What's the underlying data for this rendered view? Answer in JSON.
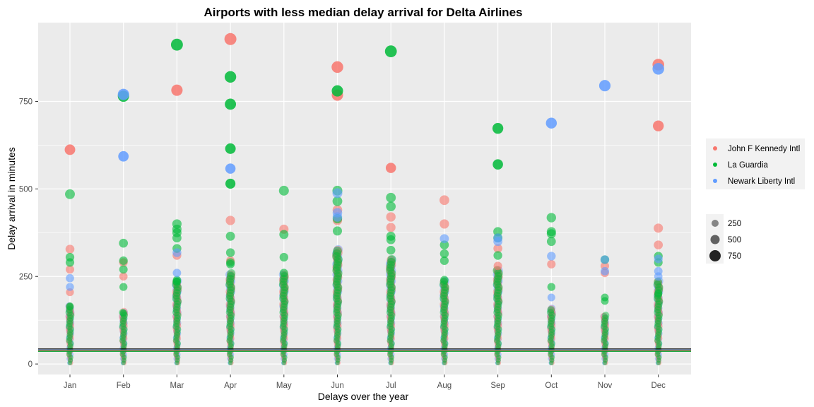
{
  "chart_data": {
    "type": "scatter",
    "title": "Airports with less median delay arrival for Delta Airlines",
    "xlabel": "Delays over the year",
    "ylabel": "Delay arrival in minutes",
    "categories": [
      "Jan",
      "Feb",
      "Mar",
      "Apr",
      "May",
      "Jun",
      "Jul",
      "Aug",
      "Sep",
      "Oct",
      "Nov",
      "Dec"
    ],
    "ylim": [
      -30,
      975
    ],
    "yticks": [
      0,
      250,
      500,
      750
    ],
    "grid": true,
    "legend_position": "right",
    "colors": {
      "John F Kennedy Intl": "#F8766D",
      "La Guardia": "#00BA38",
      "Newark Liberty Intl": "#619CFF",
      "background": "#EBEBEB"
    },
    "legend": {
      "series": [
        "John F Kennedy Intl",
        "La Guardia",
        "Newark Liberty Intl"
      ],
      "size_values": [
        250,
        500,
        750
      ],
      "size_labels": [
        "250",
        "500",
        "750"
      ]
    },
    "reference_lines": [
      {
        "y": 43,
        "color": "#000000"
      },
      {
        "y": 40,
        "color": "#2F6FE0"
      },
      {
        "y": 38,
        "color": "#C97A00"
      },
      {
        "y": 36,
        "color": "#00A030"
      }
    ],
    "series": [
      {
        "name": "John F Kennedy Intl",
        "points": [
          [
            "Jan",
            612
          ],
          [
            "Jan",
            328
          ],
          [
            "Jan",
            270
          ],
          [
            "Jan",
            205
          ],
          [
            "Feb",
            290
          ],
          [
            "Feb",
            250
          ],
          [
            "Mar",
            782
          ],
          [
            "Mar",
            310
          ],
          [
            "Apr",
            928
          ],
          [
            "Apr",
            410
          ],
          [
            "Apr",
            295
          ],
          [
            "May",
            385
          ],
          [
            "Jun",
            848
          ],
          [
            "Jun",
            768
          ],
          [
            "Jun",
            440
          ],
          [
            "Jun",
            410
          ],
          [
            "Jul",
            560
          ],
          [
            "Jul",
            420
          ],
          [
            "Jul",
            390
          ],
          [
            "Aug",
            468
          ],
          [
            "Aug",
            400
          ],
          [
            "Sep",
            330
          ],
          [
            "Sep",
            280
          ],
          [
            "Oct",
            285
          ],
          [
            "Nov",
            280
          ],
          [
            "Nov",
            260
          ],
          [
            "Dec",
            855
          ],
          [
            "Dec",
            680
          ],
          [
            "Dec",
            388
          ],
          [
            "Dec",
            340
          ]
        ]
      },
      {
        "name": "La Guardia",
        "points": [
          [
            "Jan",
            485
          ],
          [
            "Jan",
            305
          ],
          [
            "Jan",
            290
          ],
          [
            "Jan",
            165
          ],
          [
            "Feb",
            765
          ],
          [
            "Feb",
            345
          ],
          [
            "Feb",
            295
          ],
          [
            "Feb",
            270
          ],
          [
            "Feb",
            220
          ],
          [
            "Feb",
            145
          ],
          [
            "Mar",
            912
          ],
          [
            "Mar",
            400
          ],
          [
            "Mar",
            385
          ],
          [
            "Mar",
            375
          ],
          [
            "Mar",
            360
          ],
          [
            "Mar",
            330
          ],
          [
            "Mar",
            240
          ],
          [
            "Mar",
            235
          ],
          [
            "Apr",
            820
          ],
          [
            "Apr",
            742
          ],
          [
            "Apr",
            615
          ],
          [
            "Apr",
            515
          ],
          [
            "Apr",
            365
          ],
          [
            "Apr",
            318
          ],
          [
            "Apr",
            290
          ],
          [
            "Apr",
            285
          ],
          [
            "May",
            495
          ],
          [
            "May",
            370
          ],
          [
            "May",
            305
          ],
          [
            "May",
            260
          ],
          [
            "Jun",
            780
          ],
          [
            "Jun",
            495
          ],
          [
            "Jun",
            465
          ],
          [
            "Jun",
            415
          ],
          [
            "Jun",
            380
          ],
          [
            "Jul",
            893
          ],
          [
            "Jul",
            475
          ],
          [
            "Jul",
            450
          ],
          [
            "Jul",
            365
          ],
          [
            "Jul",
            355
          ],
          [
            "Jul",
            325
          ],
          [
            "Aug",
            340
          ],
          [
            "Aug",
            315
          ],
          [
            "Aug",
            295
          ],
          [
            "Aug",
            240
          ],
          [
            "Sep",
            673
          ],
          [
            "Sep",
            570
          ],
          [
            "Sep",
            378
          ],
          [
            "Sep",
            360
          ],
          [
            "Sep",
            310
          ],
          [
            "Oct",
            418
          ],
          [
            "Oct",
            378
          ],
          [
            "Oct",
            372
          ],
          [
            "Oct",
            350
          ],
          [
            "Oct",
            220
          ],
          [
            "Nov",
            298
          ],
          [
            "Nov",
            190
          ],
          [
            "Nov",
            180
          ],
          [
            "Dec",
            308
          ],
          [
            "Dec",
            290
          ],
          [
            "Dec",
            200
          ]
        ]
      },
      {
        "name": "Newark Liberty Intl",
        "points": [
          [
            "Jan",
            245
          ],
          [
            "Jan",
            220
          ],
          [
            "Feb",
            770
          ],
          [
            "Feb",
            593
          ],
          [
            "Mar",
            318
          ],
          [
            "Mar",
            260
          ],
          [
            "Apr",
            558
          ],
          [
            "Jun",
            488
          ],
          [
            "Jun",
            432
          ],
          [
            "Jun",
            420
          ],
          [
            "Aug",
            358
          ],
          [
            "Sep",
            360
          ],
          [
            "Sep",
            350
          ],
          [
            "Oct",
            688
          ],
          [
            "Oct",
            308
          ],
          [
            "Oct",
            190
          ],
          [
            "Nov",
            795
          ],
          [
            "Nov",
            298
          ],
          [
            "Nov",
            265
          ],
          [
            "Dec",
            843
          ],
          [
            "Dec",
            300
          ],
          [
            "Dec",
            265
          ],
          [
            "Dec",
            250
          ]
        ]
      }
    ],
    "dense_band": [
      {
        "month": "Jan",
        "top": 165
      },
      {
        "month": "Feb",
        "top": 150
      },
      {
        "month": "Mar",
        "top": 240
      },
      {
        "month": "Apr",
        "top": 260
      },
      {
        "month": "May",
        "top": 255
      },
      {
        "month": "Jun",
        "top": 330
      },
      {
        "month": "Jul",
        "top": 300
      },
      {
        "month": "Aug",
        "top": 240
      },
      {
        "month": "Sep",
        "top": 270
      },
      {
        "month": "Oct",
        "top": 160
      },
      {
        "month": "Nov",
        "top": 140
      },
      {
        "month": "Dec",
        "top": 240
      }
    ]
  }
}
